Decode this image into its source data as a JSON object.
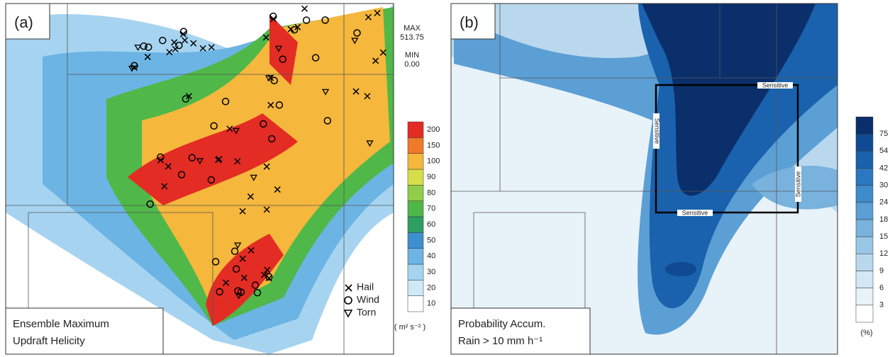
{
  "panel_a": {
    "tag": "(a)",
    "max_label": "MAX",
    "max_value": "513.75",
    "min_label": "MIN",
    "min_value": "0.00",
    "colorbar": [
      {
        "label": "10",
        "color": "#ffffff"
      },
      {
        "label": "20",
        "color": "#cfe9f7"
      },
      {
        "label": "30",
        "color": "#a6d4f0"
      },
      {
        "label": "40",
        "color": "#6cb4e4"
      },
      {
        "label": "50",
        "color": "#3e8fd0"
      },
      {
        "label": "60",
        "color": "#2e9e62"
      },
      {
        "label": "70",
        "color": "#4fb848"
      },
      {
        "label": "80",
        "color": "#8fcd4a"
      },
      {
        "label": "90",
        "color": "#d6df4a"
      },
      {
        "label": "100",
        "color": "#f5b73c"
      },
      {
        "label": "150",
        "color": "#f07a2a"
      },
      {
        "label": "200",
        "color": "#e32c24"
      }
    ],
    "units": "( m² s⁻² )",
    "legend": [
      "Hail",
      "Wind",
      "Torn"
    ],
    "title": [
      "Ensemble Maximum",
      "Updraft Helicity"
    ]
  },
  "panel_b": {
    "tag": "(b)",
    "box_labels": [
      "Sensitive",
      "Sensitive",
      "Sensitive",
      "Sensitive"
    ],
    "colorbar": [
      {
        "label": "75",
        "color": "#0b2f6b"
      },
      {
        "label": "54",
        "color": "#0f4a92"
      },
      {
        "label": "42",
        "color": "#1a62ad"
      },
      {
        "label": "30",
        "color": "#2b78c0"
      },
      {
        "label": "24",
        "color": "#3f8bcb"
      },
      {
        "label": "18",
        "color": "#5b9fd5"
      },
      {
        "label": "15",
        "color": "#78b2dd"
      },
      {
        "label": "12",
        "color": "#99c6e6"
      },
      {
        "label": "9",
        "color": "#b9d8ee"
      },
      {
        "label": "6",
        "color": "#d4e7f4"
      },
      {
        "label": "3",
        "color": "#e8f2f9"
      }
    ],
    "units": "(%)",
    "title": [
      "Probability Accum.",
      "Rain > 10 mm h⁻¹"
    ]
  }
}
